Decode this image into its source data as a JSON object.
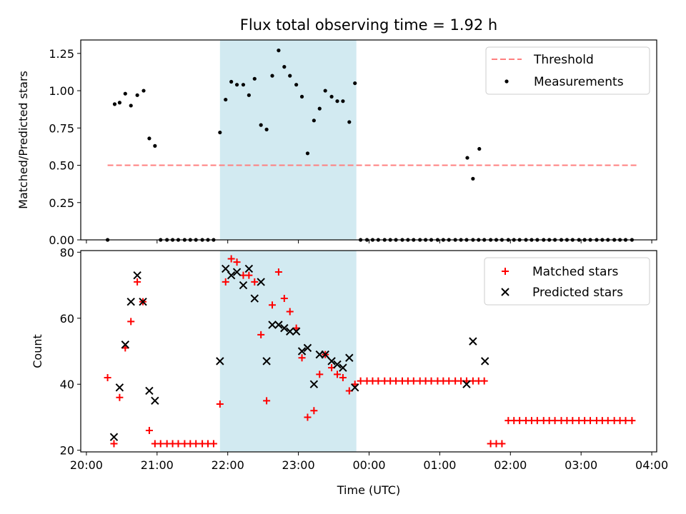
{
  "title": "Flux total observing time = 1.92 h",
  "colors": {
    "threshold": "#ff7f7f",
    "measurements": "#000000",
    "matched": "#ff0000",
    "predicted": "#000000",
    "span": "#add8e6"
  },
  "chart_data": [
    {
      "type": "scatter",
      "panel": "top",
      "ylabel": "Matched/Predicted stars",
      "ylim": [
        0,
        1.34
      ],
      "yticks": [
        0.0,
        0.25,
        0.5,
        0.75,
        1.0,
        1.25
      ],
      "ytick_labels": [
        "0.00",
        "0.25",
        "0.50",
        "0.75",
        "1.00",
        "1.25"
      ],
      "x_unit": "hours since 20:00 UTC",
      "xlim": [
        -0.08,
        8.07
      ],
      "shaded_span": [
        1.89,
        3.82
      ],
      "legend": {
        "position": "top-right",
        "entries": [
          "Threshold",
          "Measurements"
        ]
      },
      "threshold": {
        "name": "Threshold",
        "y": 0.5,
        "x": [
          0.3,
          7.8
        ]
      },
      "measurements": {
        "name": "Measurements",
        "x": [
          0.3,
          0.4,
          0.47,
          0.55,
          0.63,
          0.72,
          0.81,
          0.89,
          0.97,
          1.05,
          1.14,
          1.22,
          1.3,
          1.39,
          1.47,
          1.55,
          1.64,
          1.72,
          1.8,
          1.89,
          1.97,
          2.05,
          2.13,
          2.22,
          2.3,
          2.38,
          2.47,
          2.55,
          2.63,
          2.72,
          2.8,
          2.88,
          2.97,
          3.05,
          3.13,
          3.22,
          3.3,
          3.38,
          3.47,
          3.55,
          3.63,
          3.72,
          3.8,
          3.88,
          3.97,
          4.05,
          4.13,
          4.22,
          4.3,
          4.38,
          4.47,
          4.55,
          4.63,
          4.72,
          4.8,
          4.88,
          4.97,
          5.05,
          5.13,
          5.22,
          5.3,
          5.38,
          5.47,
          5.55,
          5.63,
          5.72,
          5.8,
          5.88,
          5.97,
          6.05,
          6.13,
          6.22,
          6.3,
          6.38,
          6.47,
          6.55,
          6.63,
          6.72,
          6.8,
          6.88,
          6.97,
          7.05,
          7.13,
          7.22,
          7.3,
          7.38,
          7.47,
          7.55,
          7.63,
          7.72
        ],
        "y": [
          0.0,
          0.91,
          0.92,
          0.98,
          0.9,
          0.97,
          1.0,
          0.68,
          0.63,
          0.0,
          0.0,
          0.0,
          0.0,
          0.0,
          0.0,
          0.0,
          0.0,
          0.0,
          0.0,
          0.72,
          0.94,
          1.06,
          1.04,
          1.04,
          0.97,
          1.08,
          0.77,
          0.74,
          1.1,
          1.27,
          1.16,
          1.1,
          1.04,
          0.96,
          0.58,
          0.8,
          0.88,
          1.0,
          0.96,
          0.93,
          0.93,
          0.79,
          1.05,
          0.0,
          0.0,
          0.0,
          0.0,
          0.0,
          0.0,
          0.0,
          0.0,
          0.0,
          0.0,
          0.0,
          0.0,
          0.0,
          0.0,
          0.0,
          0.0,
          0.0,
          0.0,
          0.0,
          0.0,
          0.0,
          0.0,
          0.0,
          0.0,
          0.0,
          0.0,
          0.0,
          0.0,
          0.0,
          0.0,
          0.0,
          0.0,
          0.0,
          0.0,
          0.0,
          0.0,
          0.0,
          0.0,
          0.0,
          0.0,
          0.0,
          0.0,
          0.0,
          0.0,
          0.0,
          0.0,
          0.0
        ]
      },
      "extra_points": {
        "x": [
          5.39,
          5.47,
          5.56
        ],
        "y": [
          0.55,
          0.41,
          0.61
        ]
      }
    },
    {
      "type": "scatter",
      "panel": "bottom",
      "ylabel": "Count",
      "xlabel": "Time (UTC)",
      "ylim": [
        19.5,
        80.5
      ],
      "yticks": [
        20,
        40,
        60,
        80
      ],
      "ytick_labels": [
        "20",
        "40",
        "60",
        "80"
      ],
      "x_unit": "hours since 20:00 UTC",
      "xlim": [
        -0.08,
        8.07
      ],
      "xticks": [
        0,
        1,
        2,
        3,
        4,
        5,
        6,
        7,
        8
      ],
      "xtick_labels": [
        "20:00",
        "21:00",
        "22:00",
        "23:00",
        "00:00",
        "01:00",
        "02:00",
        "03:00",
        "04:00"
      ],
      "shaded_span": [
        1.89,
        3.82
      ],
      "legend": {
        "position": "top-right",
        "entries": [
          "Matched stars",
          "Predicted stars"
        ]
      },
      "series": [
        {
          "name": "Matched stars",
          "marker": "plus",
          "x": [
            0.3,
            0.39,
            0.47,
            0.55,
            0.63,
            0.72,
            0.8,
            0.89,
            0.97,
            1.05,
            1.14,
            1.22,
            1.3,
            1.39,
            1.47,
            1.55,
            1.64,
            1.72,
            1.8,
            1.89,
            1.97,
            2.05,
            2.13,
            2.22,
            2.3,
            2.38,
            2.47,
            2.55,
            2.63,
            2.72,
            2.8,
            2.88,
            2.97,
            3.05,
            3.13,
            3.22,
            3.3,
            3.38,
            3.47,
            3.55,
            3.63,
            3.72,
            3.8,
            3.88,
            3.97,
            4.05,
            4.13,
            4.22,
            4.3,
            4.38,
            4.47,
            4.55,
            4.63,
            4.72,
            4.8,
            4.88,
            4.97,
            5.05,
            5.13,
            5.22,
            5.3,
            5.38,
            5.47,
            5.55,
            5.63,
            5.72,
            5.8,
            5.88,
            5.97,
            6.05,
            6.13,
            6.22,
            6.3,
            6.38,
            6.47,
            6.55,
            6.63,
            6.72,
            6.8,
            6.88,
            6.97,
            7.05,
            7.13,
            7.22,
            7.3,
            7.38,
            7.47,
            7.55,
            7.63,
            7.72
          ],
          "y": [
            42,
            22,
            36,
            51,
            59,
            71,
            65,
            26,
            22,
            22,
            22,
            22,
            22,
            22,
            22,
            22,
            22,
            22,
            22,
            34,
            71,
            78,
            77,
            73,
            73,
            71,
            55,
            35,
            64,
            74,
            66,
            62,
            57,
            48,
            30,
            32,
            43,
            49,
            45,
            43,
            42,
            38,
            40,
            41,
            41,
            41,
            41,
            41,
            41,
            41,
            41,
            41,
            41,
            41,
            41,
            41,
            41,
            41,
            41,
            41,
            41,
            41,
            41,
            41,
            41,
            22,
            22,
            22,
            29,
            29,
            29,
            29,
            29,
            29,
            29,
            29,
            29,
            29,
            29,
            29,
            29,
            29,
            29,
            29,
            29,
            29,
            29,
            29,
            29,
            29
          ]
        },
        {
          "name": "Predicted stars",
          "marker": "x",
          "x": [
            0.39,
            0.47,
            0.55,
            0.63,
            0.72,
            0.8,
            0.89,
            0.97,
            1.89,
            1.97,
            2.05,
            2.13,
            2.22,
            2.3,
            2.38,
            2.47,
            2.55,
            2.63,
            2.72,
            2.8,
            2.88,
            2.97,
            3.05,
            3.13,
            3.22,
            3.3,
            3.38,
            3.47,
            3.55,
            3.63,
            3.72,
            3.8,
            5.38,
            5.47,
            5.64
          ],
          "y": [
            24,
            39,
            52,
            65,
            73,
            65,
            38,
            35,
            47,
            75,
            73,
            74,
            70,
            75,
            66,
            71,
            47,
            58,
            58,
            57,
            56,
            56,
            50,
            51,
            40,
            49,
            49,
            47,
            46,
            45,
            48,
            39,
            40,
            53,
            47
          ]
        }
      ]
    }
  ]
}
